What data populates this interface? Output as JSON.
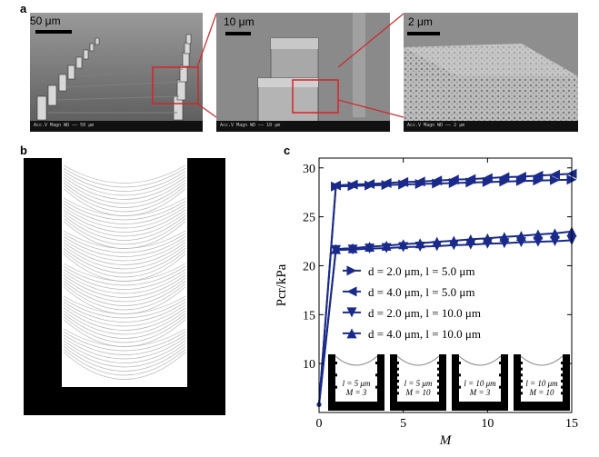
{
  "panels": {
    "a": "a",
    "b": "b",
    "c": "c"
  },
  "sem_images": [
    {
      "scale": "50 μm",
      "info": "Acc.V  Magn  WD  ——  50 μm"
    },
    {
      "scale": "10 μm",
      "info": "Acc.V  Magn  WD  ——  10 μm"
    },
    {
      "scale": "2 μm",
      "info": "Acc.V  Magn  WD  ——  2 μm"
    }
  ],
  "colors": {
    "series": "#1a2a8a",
    "frame": "#000000",
    "lines": "#b5b5b5"
  },
  "chart_data": {
    "type": "line",
    "xlabel": "M",
    "ylabel": "Pcr/kPa",
    "xlim": [
      0,
      15
    ],
    "ylim": [
      5,
      31
    ],
    "xticks": [
      0,
      5,
      10,
      15
    ],
    "yticks": [
      10,
      15,
      20,
      25,
      30
    ],
    "legend_position": "center-right",
    "series": [
      {
        "name": "d = 2.0 μm, l = 5.0 μm",
        "marker": "triangle-right",
        "x": [
          0,
          1,
          2,
          3,
          4,
          5,
          6,
          7,
          8,
          9,
          10,
          11,
          12,
          13,
          14,
          15
        ],
        "y": [
          5.8,
          28.1,
          28.15,
          28.2,
          28.25,
          28.3,
          28.35,
          28.4,
          28.45,
          28.5,
          28.55,
          28.6,
          28.65,
          28.7,
          28.75,
          28.8
        ]
      },
      {
        "name": "d = 4.0 μm, l = 5.0 μm",
        "marker": "triangle-left",
        "x": [
          0,
          1,
          2,
          3,
          4,
          5,
          6,
          7,
          8,
          9,
          10,
          11,
          12,
          13,
          14,
          15
        ],
        "y": [
          5.8,
          28.2,
          28.3,
          28.35,
          28.45,
          28.55,
          28.6,
          28.7,
          28.8,
          28.85,
          28.95,
          29.05,
          29.1,
          29.2,
          29.3,
          29.4
        ]
      },
      {
        "name": "d = 2.0 μm, l = 10.0 μm",
        "marker": "triangle-down",
        "x": [
          0,
          1,
          2,
          3,
          4,
          5,
          6,
          7,
          8,
          9,
          10,
          11,
          12,
          13,
          14,
          15
        ],
        "y": [
          5.8,
          21.6,
          21.65,
          21.75,
          21.8,
          21.9,
          21.95,
          22.0,
          22.1,
          22.15,
          22.25,
          22.3,
          22.4,
          22.45,
          22.5,
          22.6
        ]
      },
      {
        "name": "d = 4.0 μm, l = 10.0 μm",
        "marker": "triangle-up",
        "x": [
          0,
          1,
          2,
          3,
          4,
          5,
          6,
          7,
          8,
          9,
          10,
          11,
          12,
          13,
          14,
          15
        ],
        "y": [
          5.8,
          21.7,
          21.8,
          21.95,
          22.05,
          22.2,
          22.3,
          22.45,
          22.55,
          22.7,
          22.8,
          22.95,
          23.05,
          23.2,
          23.3,
          23.5
        ]
      }
    ],
    "insets": [
      {
        "l": "l = 5 μm",
        "m": "M = 3"
      },
      {
        "l": "l = 5 μm",
        "m": "M = 10"
      },
      {
        "l": "l = 10 μm",
        "m": "M = 3"
      },
      {
        "l": "l = 10 μm",
        "m": "M = 10"
      }
    ]
  }
}
